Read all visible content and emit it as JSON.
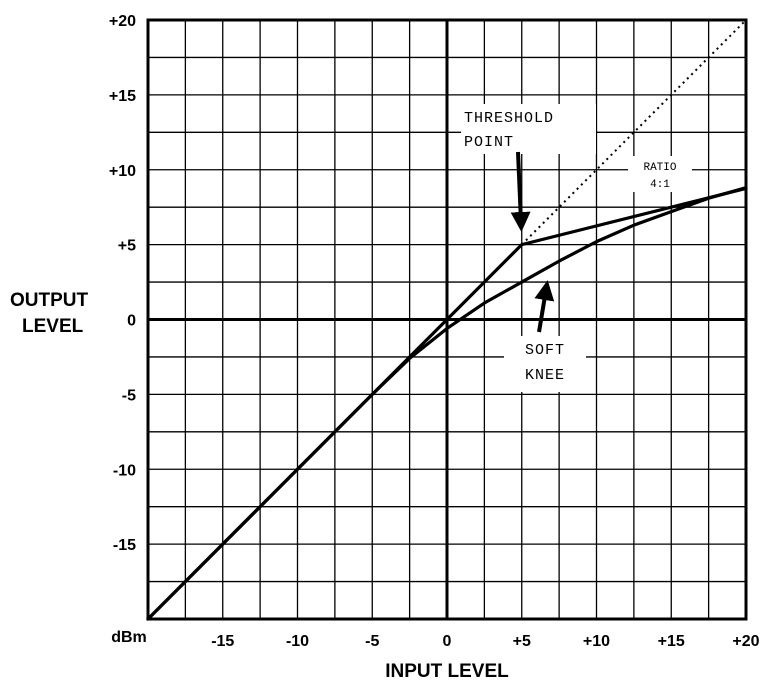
{
  "chart_data": {
    "type": "line",
    "title": "",
    "xlabel": "INPUT LEVEL",
    "ylabel_lines": [
      "OUTPUT",
      "LEVEL"
    ],
    "unit_label": "dBm",
    "xlim": [
      -20,
      20
    ],
    "ylim": [
      -20,
      20
    ],
    "grid": true,
    "x_ticks": [
      {
        "value": -15,
        "label": "-15"
      },
      {
        "value": -10,
        "label": "-10"
      },
      {
        "value": -5,
        "label": "-5"
      },
      {
        "value": 0,
        "label": "0"
      },
      {
        "value": 5,
        "label": "+5"
      },
      {
        "value": 10,
        "label": "+10"
      },
      {
        "value": 15,
        "label": "+15"
      },
      {
        "value": 20,
        "label": "+20"
      }
    ],
    "y_ticks": [
      {
        "value": 20,
        "label": "+20"
      },
      {
        "value": 15,
        "label": "+15"
      },
      {
        "value": 10,
        "label": "+10"
      },
      {
        "value": 5,
        "label": "+5"
      },
      {
        "value": 0,
        "label": "0"
      },
      {
        "value": -5,
        "label": "-5"
      },
      {
        "value": -10,
        "label": "-10"
      },
      {
        "value": -15,
        "label": "-15"
      }
    ],
    "series": [
      {
        "style": "solid",
        "x": [
          -20,
          5,
          20
        ],
        "y": [
          -20,
          5,
          8.75
        ]
      },
      {
        "style": "dotted",
        "x": [
          5,
          20
        ],
        "y": [
          5,
          20
        ]
      },
      {
        "style": "solid",
        "x": [
          -20,
          -5,
          -2.5,
          0,
          2.5,
          5,
          7.5,
          10,
          12.5,
          15,
          17.5,
          20
        ],
        "y": [
          -20,
          -5,
          -2.6,
          -0.6,
          1.1,
          2.5,
          3.9,
          5.2,
          6.3,
          7.2,
          8.1,
          8.8
        ]
      }
    ],
    "annotations": [
      {
        "lines": [
          "THRESHOLD",
          "POINT"
        ]
      },
      {
        "lines": [
          "RATIO",
          "4:1"
        ]
      },
      {
        "lines": [
          "SOFT",
          "KNEE"
        ]
      }
    ]
  }
}
